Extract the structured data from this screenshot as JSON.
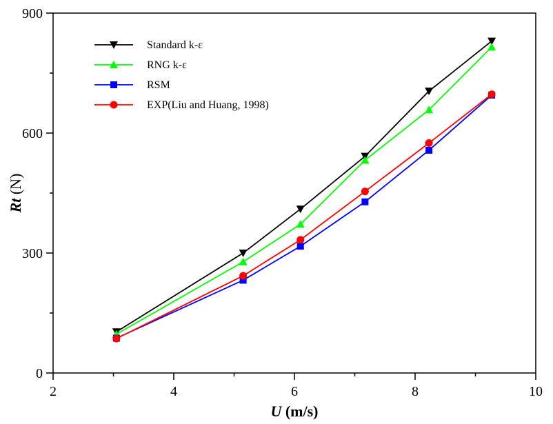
{
  "chart_data": {
    "type": "line",
    "xlabel_var": "U",
    "xlabel_unit": " (m/s)",
    "ylabel_var": "Rt",
    "ylabel_unit": " (N)",
    "xlim": [
      2,
      10
    ],
    "ylim": [
      0,
      900
    ],
    "xticks": [
      2,
      4,
      6,
      8,
      10
    ],
    "yticks": [
      0,
      300,
      600,
      900
    ],
    "legend_position": "top-left",
    "grid": false,
    "series": [
      {
        "name": "Standard k-ε",
        "color": "#000000",
        "marker": "triangle-down",
        "x": [
          3.05,
          5.15,
          6.1,
          7.17,
          8.23,
          9.27
        ],
        "y": [
          103,
          300,
          410,
          542,
          705,
          830
        ]
      },
      {
        "name": "RNG k-ε",
        "color": "#00ff00",
        "marker": "triangle-up",
        "x": [
          3.05,
          5.15,
          6.1,
          7.17,
          8.23,
          9.27
        ],
        "y": [
          97,
          278,
          372,
          532,
          658,
          815
        ]
      },
      {
        "name": "RSM",
        "color": "#0000ff",
        "marker": "square",
        "x": [
          3.05,
          5.15,
          6.1,
          7.17,
          8.23,
          9.27
        ],
        "y": [
          87,
          232,
          317,
          428,
          557,
          695
        ]
      },
      {
        "name": "EXP(Liu and Huang, 1998)",
        "color": "#ff0000",
        "marker": "circle",
        "x": [
          3.05,
          5.15,
          6.1,
          7.17,
          8.23,
          9.27
        ],
        "y": [
          86,
          243,
          333,
          454,
          575,
          697
        ]
      }
    ]
  }
}
